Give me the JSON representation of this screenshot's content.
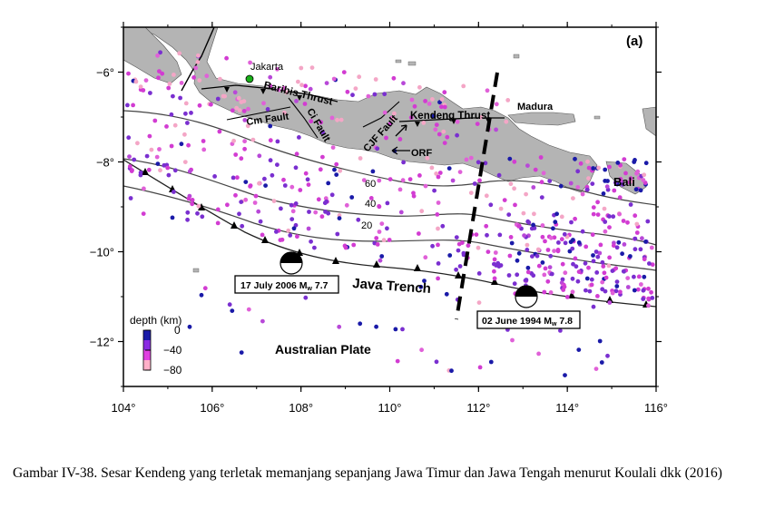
{
  "panel_label": "(a)",
  "axes": {
    "x_ticks": [
      {
        "value": 104,
        "label": "104°"
      },
      {
        "value": 106,
        "label": "106°"
      },
      {
        "value": 108,
        "label": "108°"
      },
      {
        "value": 110,
        "label": "110°"
      },
      {
        "value": 112,
        "label": "112°"
      },
      {
        "value": 114,
        "label": "114°"
      },
      {
        "value": 116,
        "label": "116°"
      }
    ],
    "y_ticks": [
      {
        "value": -6,
        "label": "−6°"
      },
      {
        "value": -8,
        "label": "−8°"
      },
      {
        "value": -10,
        "label": "−10°"
      },
      {
        "value": -12,
        "label": "−12°"
      }
    ],
    "lon_range": [
      104,
      116
    ],
    "lat_range": [
      -13,
      -5
    ]
  },
  "places": {
    "jakarta": "Jakarta",
    "madura": "Madura",
    "bali": "Bali",
    "java_trench": "Java Trench",
    "australian_plate": "Australian Plate"
  },
  "faults": {
    "baribis": "Baribis Thrust",
    "cm": "Cm Fault",
    "ci": "Ci Fault",
    "cjf": "CJF Fault",
    "kendeng": "Kendeng Thrust",
    "orf": "ORF"
  },
  "contours": [
    {
      "label": "60"
    },
    {
      "label": "40"
    },
    {
      "label": "20"
    }
  ],
  "events": [
    {
      "date_label": "17 July 2006 M",
      "sub": "w",
      "mag": " 7.7",
      "lon": 107.8,
      "lat": -10.3
    },
    {
      "date_label": "02 June 1994 M",
      "sub": "w",
      "mag": " 7.8",
      "lon": 113.0,
      "lat": -11.05
    }
  ],
  "legend": {
    "title": "depth (km)",
    "labels": [
      "0",
      "−40",
      "−80"
    ],
    "colors": [
      "#1a1aa8",
      "#8a2be2",
      "#e040e0",
      "#ffb0c8"
    ]
  },
  "colors": {
    "land": "#b4b4b4",
    "shallow": "#1a1aa8",
    "medium": "#d23cd2",
    "deep": "#f4a6c6"
  },
  "caption": "Gambar IV-38. Sesar Kendeng yang terletak memanjang sepanjang Jawa Timur dan Jawa Tengah menurut Koulali dkk (2016)"
}
